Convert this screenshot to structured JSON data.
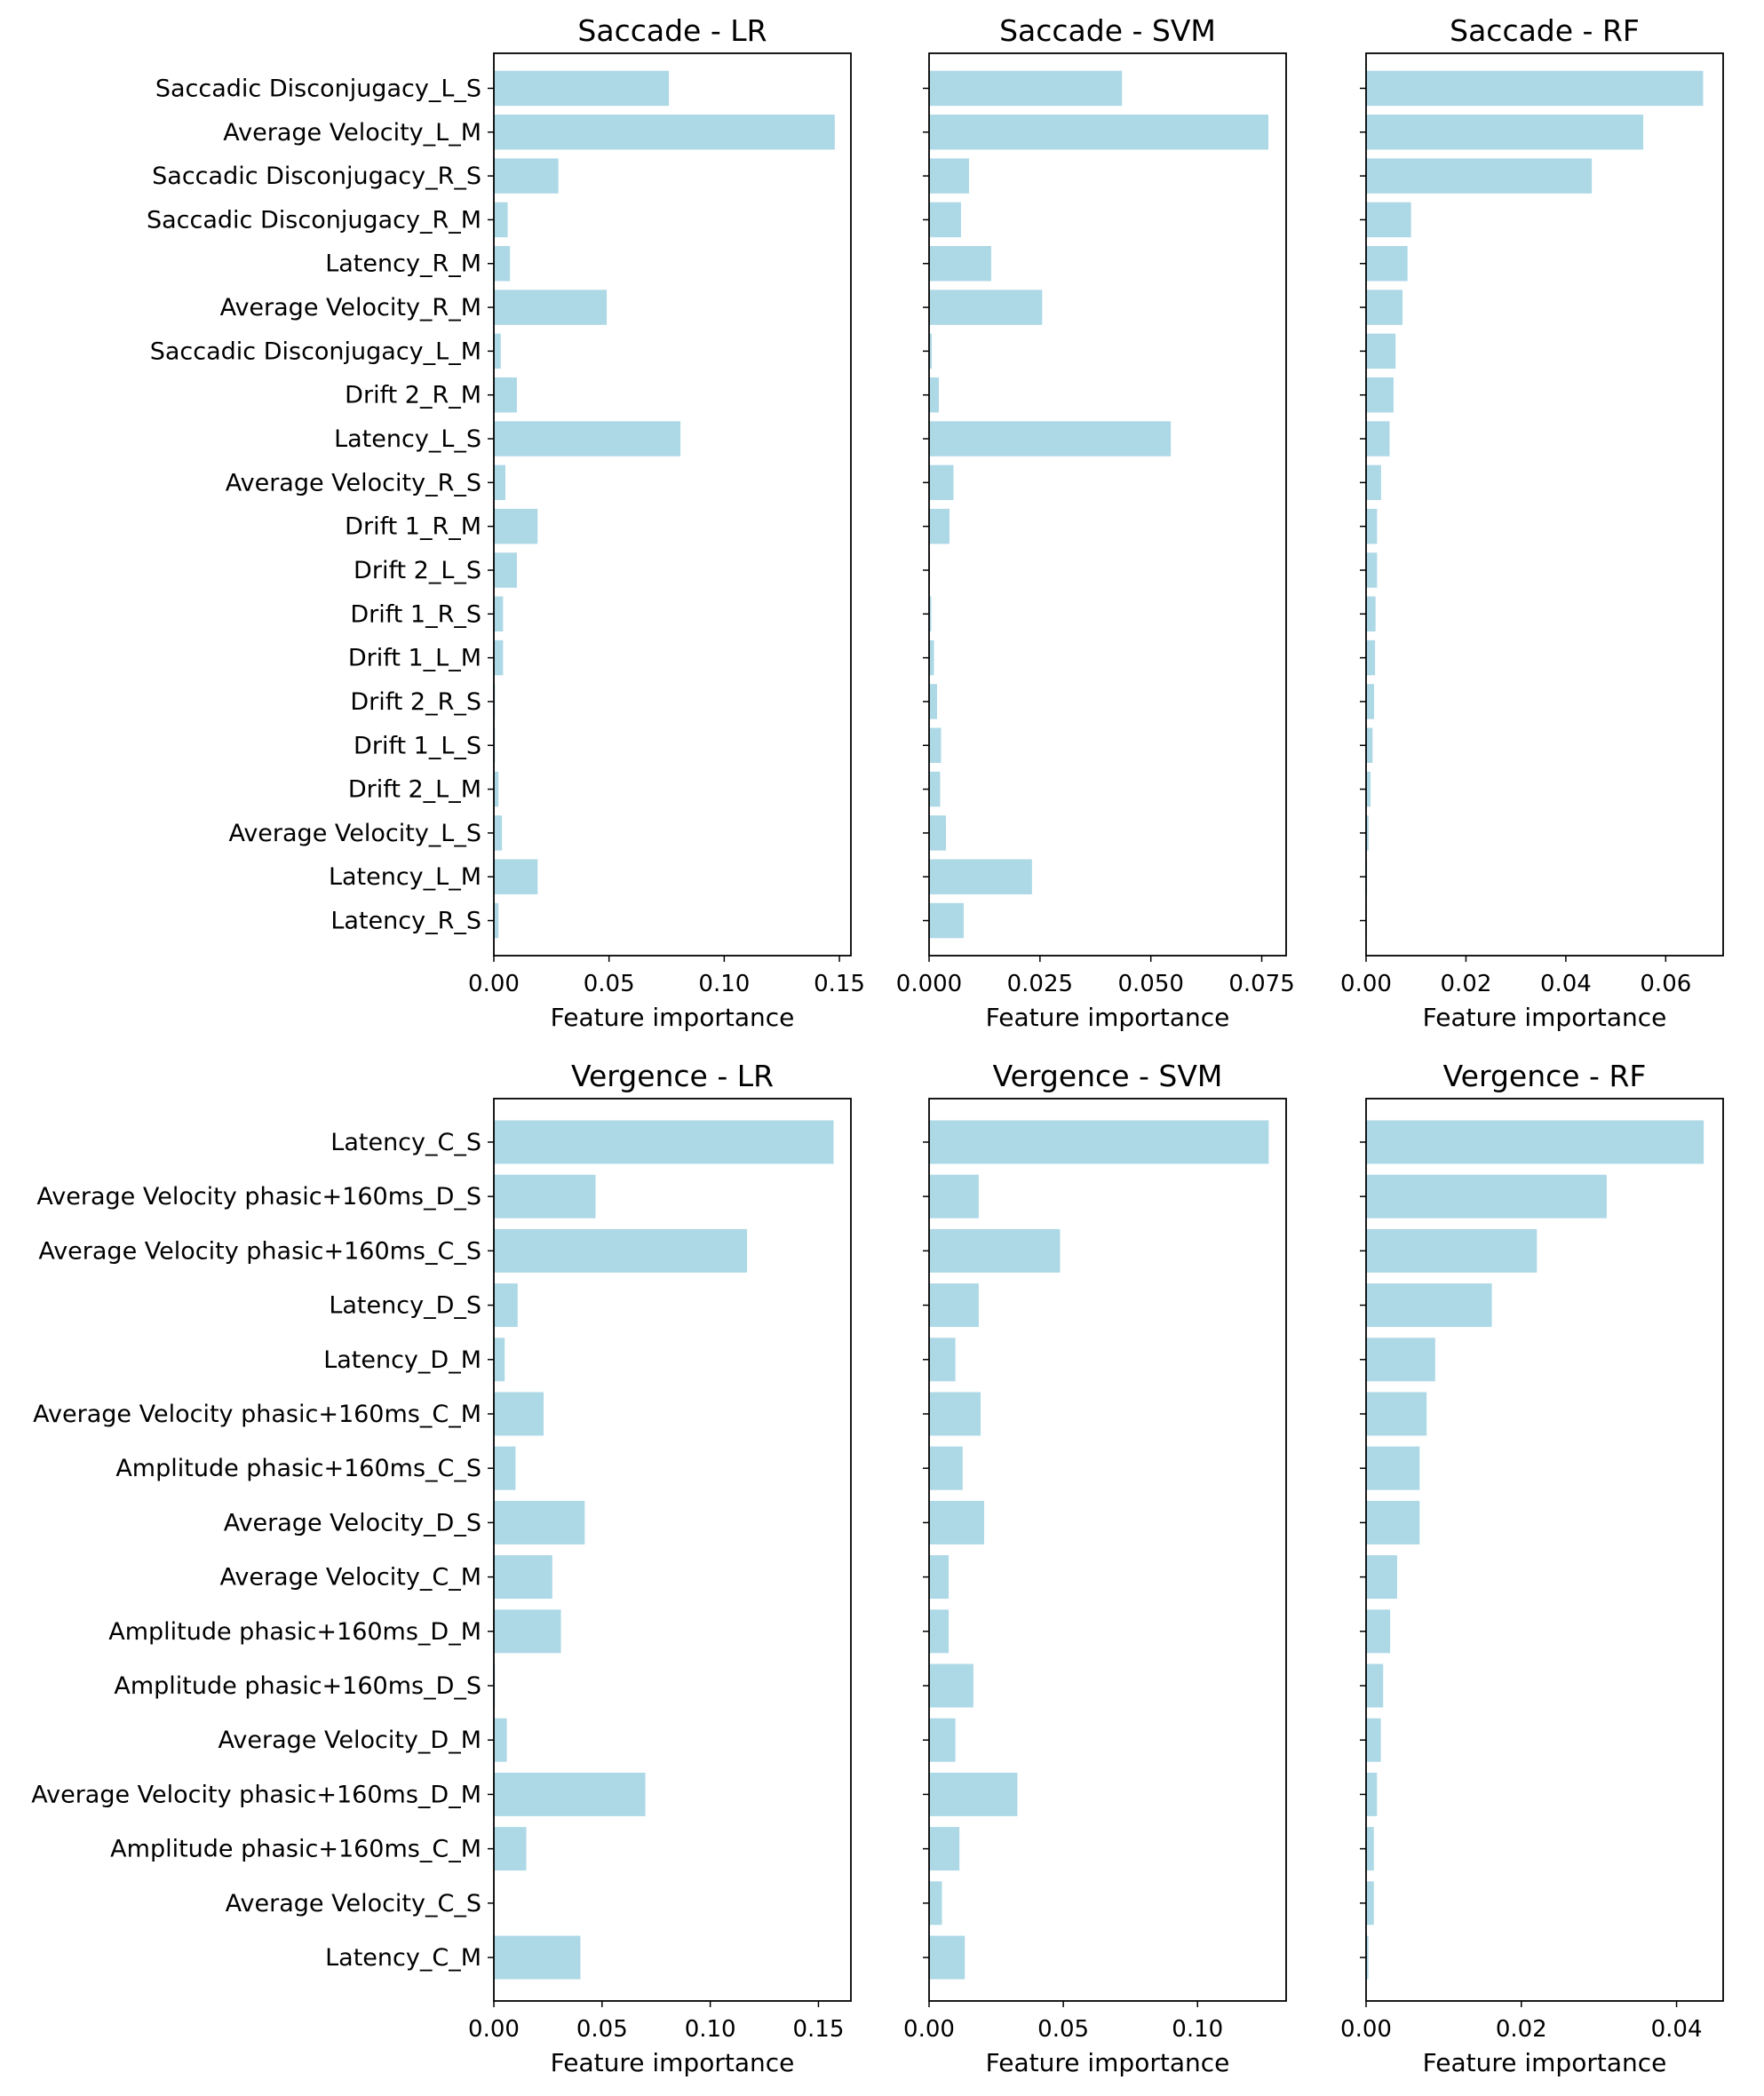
{
  "colors": {
    "bar": "#add8e6",
    "axis": "#000000",
    "background": "#ffffff"
  },
  "chart_data": [
    {
      "type": "bar",
      "orientation": "horizontal",
      "title": "Saccade - LR",
      "xlabel": "Feature importance",
      "categories": [
        "Saccadic Disconjugacy_L_S",
        "Average Velocity_L_M",
        "Saccadic Disconjugacy_R_S",
        "Saccadic Disconjugacy_R_M",
        "Latency_R_M",
        "Average Velocity_R_M",
        "Saccadic Disconjugacy_L_M",
        "Drift 2_R_M",
        "Latency_L_S",
        "Average Velocity_R_S",
        "Drift 1_R_M",
        "Drift 2_L_S",
        "Drift 1_R_S",
        "Drift 1_L_M",
        "Drift 2_R_S",
        "Drift 1_L_S",
        "Drift 2_L_M",
        "Average Velocity_L_S",
        "Latency_L_M",
        "Latency_R_S"
      ],
      "values": [
        0.076,
        0.148,
        0.028,
        0.006,
        0.007,
        0.049,
        0.003,
        0.01,
        0.081,
        0.005,
        0.019,
        0.01,
        0.004,
        0.004,
        0.0005,
        0.0005,
        0.002,
        0.0035,
        0.019,
        0.002
      ],
      "xlim": [
        0,
        0.155
      ],
      "xticks": [
        0.0,
        0.05,
        0.1,
        0.15
      ],
      "xticklabels": [
        "0.00",
        "0.05",
        "0.10",
        "0.15"
      ]
    },
    {
      "type": "bar",
      "orientation": "horizontal",
      "title": "Saccade - SVM",
      "xlabel": "Feature importance",
      "categories": [
        "Saccadic Disconjugacy_L_S",
        "Average Velocity_L_M",
        "Saccadic Disconjugacy_R_S",
        "Saccadic Disconjugacy_R_M",
        "Latency_R_M",
        "Average Velocity_R_M",
        "Saccadic Disconjugacy_L_M",
        "Drift 2_R_M",
        "Latency_L_S",
        "Average Velocity_R_S",
        "Drift 1_R_M",
        "Drift 2_L_S",
        "Drift 1_R_S",
        "Drift 1_L_M",
        "Drift 2_R_S",
        "Drift 1_L_S",
        "Drift 2_L_M",
        "Average Velocity_L_S",
        "Latency_L_M",
        "Latency_R_S"
      ],
      "values": [
        0.0435,
        0.0765,
        0.009,
        0.0072,
        0.014,
        0.0255,
        0.0006,
        0.0022,
        0.0545,
        0.0055,
        0.0046,
        0.0002,
        0.0005,
        0.0011,
        0.0018,
        0.0027,
        0.0025,
        0.0038,
        0.0232,
        0.0078
      ],
      "xlim": [
        0,
        0.0805
      ],
      "xticks": [
        0.0,
        0.025,
        0.05,
        0.075
      ],
      "xticklabels": [
        "0.000",
        "0.025",
        "0.050",
        "0.075"
      ]
    },
    {
      "type": "bar",
      "orientation": "horizontal",
      "title": "Saccade - RF",
      "xlabel": "Feature importance",
      "categories": [
        "Saccadic Disconjugacy_L_S",
        "Average Velocity_L_M",
        "Saccadic Disconjugacy_R_S",
        "Saccadic Disconjugacy_R_M",
        "Latency_R_M",
        "Average Velocity_R_M",
        "Saccadic Disconjugacy_L_M",
        "Drift 2_R_M",
        "Latency_L_S",
        "Average Velocity_R_S",
        "Drift 1_R_M",
        "Drift 2_L_S",
        "Drift 1_R_S",
        "Drift 1_L_M",
        "Drift 2_R_S",
        "Drift 1_L_S",
        "Drift 2_L_M",
        "Average Velocity_L_S",
        "Latency_L_M",
        "Latency_R_S"
      ],
      "values": [
        0.0675,
        0.0555,
        0.0452,
        0.009,
        0.0083,
        0.0073,
        0.0059,
        0.0055,
        0.0047,
        0.003,
        0.0022,
        0.0022,
        0.0019,
        0.0018,
        0.0016,
        0.0013,
        0.0009,
        0.0005,
        0.0002,
        0.0001
      ],
      "xlim": [
        0,
        0.0715
      ],
      "xticks": [
        0.0,
        0.02,
        0.04,
        0.06
      ],
      "xticklabels": [
        "0.00",
        "0.02",
        "0.04",
        "0.06"
      ]
    },
    {
      "type": "bar",
      "orientation": "horizontal",
      "title": "Vergence - LR",
      "xlabel": "Feature importance",
      "categories": [
        "Latency_C_S",
        "Average Velocity phasic+160ms_D_S",
        "Average Velocity phasic+160ms_C_S",
        "Latency_D_S",
        "Latency_D_M",
        "Average Velocity phasic+160ms_C_M",
        "Amplitude phasic+160ms_C_S",
        "Average Velocity_D_S",
        "Average Velocity_C_M",
        "Amplitude phasic+160ms_D_M",
        "Amplitude phasic+160ms_D_S",
        "Average Velocity_D_M",
        "Average Velocity phasic+160ms_D_M",
        "Amplitude phasic+160ms_C_M",
        "Average Velocity_C_S",
        "Latency_C_M"
      ],
      "values": [
        0.157,
        0.047,
        0.117,
        0.011,
        0.005,
        0.023,
        0.01,
        0.042,
        0.027,
        0.031,
        0.0005,
        0.006,
        0.07,
        0.015,
        0.0003,
        0.04
      ],
      "xlim": [
        0,
        0.165
      ],
      "xticks": [
        0.0,
        0.05,
        0.1,
        0.15
      ],
      "xticklabels": [
        "0.00",
        "0.05",
        "0.10",
        "0.15"
      ]
    },
    {
      "type": "bar",
      "orientation": "horizontal",
      "title": "Vergence - SVM",
      "xlabel": "Feature importance",
      "categories": [
        "Latency_C_S",
        "Average Velocity phasic+160ms_D_S",
        "Average Velocity phasic+160ms_C_S",
        "Latency_D_S",
        "Latency_D_M",
        "Average Velocity phasic+160ms_C_M",
        "Amplitude phasic+160ms_C_S",
        "Average Velocity_D_S",
        "Average Velocity_C_M",
        "Amplitude phasic+160ms_D_M",
        "Amplitude phasic+160ms_D_S",
        "Average Velocity_D_M",
        "Average Velocity phasic+160ms_D_M",
        "Amplitude phasic+160ms_C_M",
        "Average Velocity_C_S",
        "Latency_C_M"
      ],
      "values": [
        0.1265,
        0.0185,
        0.0488,
        0.0185,
        0.0098,
        0.0192,
        0.0125,
        0.0205,
        0.0073,
        0.0073,
        0.0165,
        0.0098,
        0.0329,
        0.0113,
        0.0048,
        0.0133
      ],
      "xlim": [
        0,
        0.133
      ],
      "xticks": [
        0.0,
        0.05,
        0.1
      ],
      "xticklabels": [
        "0.00",
        "0.05",
        "0.10"
      ]
    },
    {
      "type": "bar",
      "orientation": "horizontal",
      "title": "Vergence - RF",
      "xlabel": "Feature importance",
      "categories": [
        "Latency_C_S",
        "Average Velocity phasic+160ms_D_S",
        "Average Velocity phasic+160ms_C_S",
        "Latency_D_S",
        "Latency_D_M",
        "Average Velocity phasic+160ms_C_M",
        "Amplitude phasic+160ms_C_S",
        "Average Velocity_D_S",
        "Average Velocity_C_M",
        "Amplitude phasic+160ms_D_M",
        "Amplitude phasic+160ms_D_S",
        "Average Velocity_D_M",
        "Average Velocity phasic+160ms_D_M",
        "Amplitude phasic+160ms_C_M",
        "Average Velocity_C_S",
        "Latency_C_M"
      ],
      "values": [
        0.0435,
        0.031,
        0.022,
        0.0162,
        0.0089,
        0.0078,
        0.0069,
        0.0069,
        0.004,
        0.0031,
        0.0022,
        0.0019,
        0.0014,
        0.001,
        0.001,
        0.0003
      ],
      "xlim": [
        0,
        0.046
      ],
      "xticks": [
        0.0,
        0.02,
        0.04
      ],
      "xticklabels": [
        "0.00",
        "0.02",
        "0.04"
      ]
    }
  ]
}
